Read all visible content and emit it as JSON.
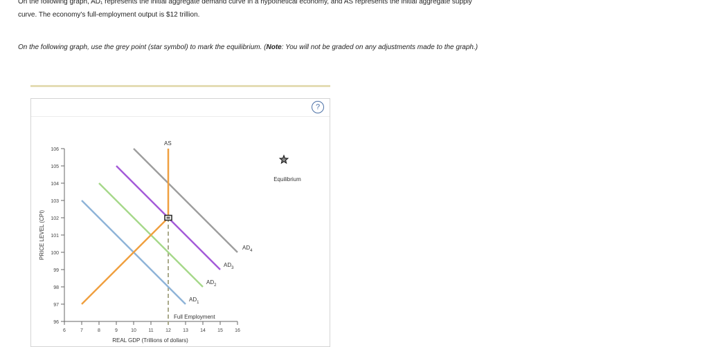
{
  "intro": {
    "line1": "On the following graph, AD₁ represents the initial aggregate demand curve in a hypothetical economy, and AS represents the initial aggregate supply",
    "line2": "curve. The economy's full-employment output is $12 trillion."
  },
  "instruction": {
    "prefix": "On the following graph, use the grey point (star symbol) to mark the equilibrium. (",
    "note_label": "Note",
    "suffix": ": You will not be graded on any adjustments made to the graph.)"
  },
  "help": {
    "label": "?"
  },
  "palette": {
    "title": "Equilibrium",
    "icon": "star-marker-icon",
    "color": "#888888"
  },
  "chart_data": {
    "type": "line",
    "xlabel": "REAL GDP (Trillions of dollars)",
    "ylabel": "PRICE LEVEL (CPI)",
    "xlim": [
      6,
      16
    ],
    "ylim": [
      96,
      106
    ],
    "x_ticks": [
      6,
      7,
      8,
      9,
      10,
      11,
      12,
      13,
      14,
      15,
      16
    ],
    "y_ticks": [
      96,
      97,
      98,
      99,
      100,
      101,
      102,
      103,
      104,
      105,
      106
    ],
    "grid": false,
    "series": [
      {
        "name": "AS",
        "label_main": "AS",
        "label_sub": "",
        "color": "#f0a040",
        "points": [
          [
            7,
            97
          ],
          [
            12,
            102
          ],
          [
            12,
            106
          ]
        ]
      },
      {
        "name": "AD1",
        "label_main": "AD",
        "label_sub": "1",
        "color": "#8fb4d8",
        "points": [
          [
            7,
            103
          ],
          [
            13,
            97
          ]
        ]
      },
      {
        "name": "AD2",
        "label_main": "AD",
        "label_sub": "2",
        "color": "#a6d88a",
        "points": [
          [
            8,
            104
          ],
          [
            14,
            98
          ]
        ]
      },
      {
        "name": "AD3",
        "label_main": "AD",
        "label_sub": "3",
        "color": "#a45ad8",
        "points": [
          [
            9,
            105
          ],
          [
            15,
            99
          ]
        ]
      },
      {
        "name": "AD4",
        "label_main": "AD",
        "label_sub": "4",
        "color": "#9e9e9e",
        "points": [
          [
            10,
            106
          ],
          [
            16,
            100
          ]
        ]
      }
    ],
    "full_employment": {
      "x": 12,
      "label": "Full Employment",
      "color": "#a9a98a"
    },
    "marker": {
      "x": 12,
      "y": 102
    }
  }
}
